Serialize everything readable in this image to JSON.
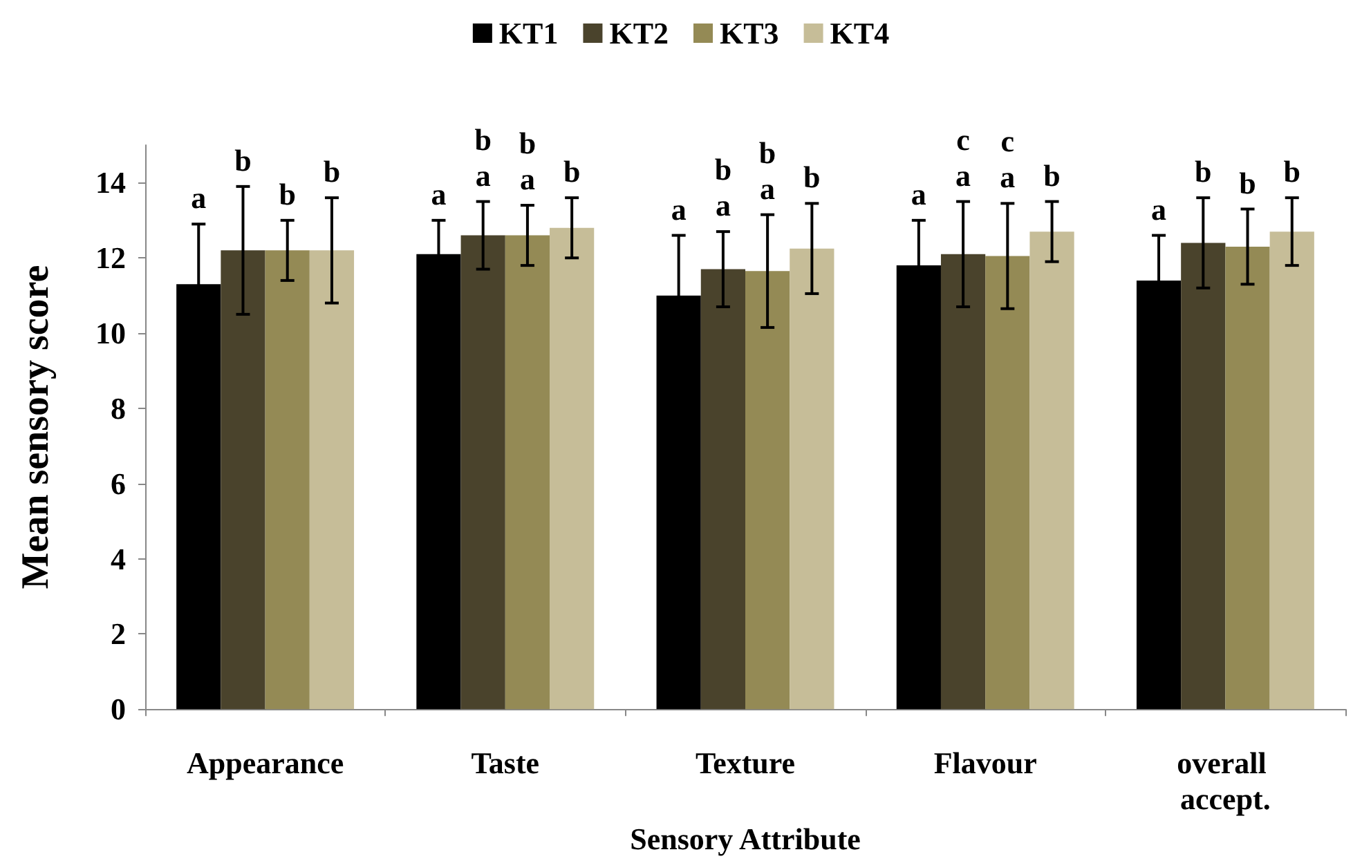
{
  "chart_data": {
    "type": "bar",
    "xlabel": "Sensory Attribute",
    "ylabel": "Mean sensory score",
    "categories": [
      "Appearance",
      "Taste",
      "Texture",
      "Flavour",
      "overall accept."
    ],
    "ylim": [
      0,
      15
    ],
    "yticks": [
      0,
      2,
      4,
      6,
      8,
      10,
      12,
      14
    ],
    "grid": false,
    "legend": "top",
    "series": [
      {
        "name": "KT1",
        "color": "#000000",
        "values": [
          11.3,
          12.1,
          11.0,
          11.8,
          11.4
        ],
        "errors": [
          1.6,
          0.9,
          1.6,
          1.2,
          1.2
        ],
        "value_labels": [
          "a",
          "a",
          "a",
          "a",
          "a"
        ]
      },
      {
        "name": "KT2",
        "color": "#4a432c",
        "values": [
          12.2,
          12.6,
          11.7,
          12.1,
          12.4
        ],
        "errors": [
          1.7,
          0.9,
          1.0,
          1.4,
          1.2
        ],
        "value_labels": [
          "b",
          "b\na",
          "b\na",
          "c\na",
          "b"
        ]
      },
      {
        "name": "KT3",
        "color": "#948a55",
        "values": [
          12.2,
          12.6,
          11.65,
          12.05,
          12.3
        ],
        "errors": [
          0.8,
          0.8,
          1.5,
          1.4,
          1.0
        ],
        "value_labels": [
          "b",
          "b\na",
          "b\na",
          "c\na",
          "b"
        ]
      },
      {
        "name": "KT4",
        "color": "#c6bd98",
        "values": [
          12.2,
          12.8,
          12.25,
          12.7,
          12.7
        ],
        "errors": [
          1.4,
          0.8,
          1.2,
          0.8,
          0.9
        ],
        "value_labels": [
          "b",
          "b",
          "b",
          "b",
          "b"
        ]
      }
    ]
  }
}
